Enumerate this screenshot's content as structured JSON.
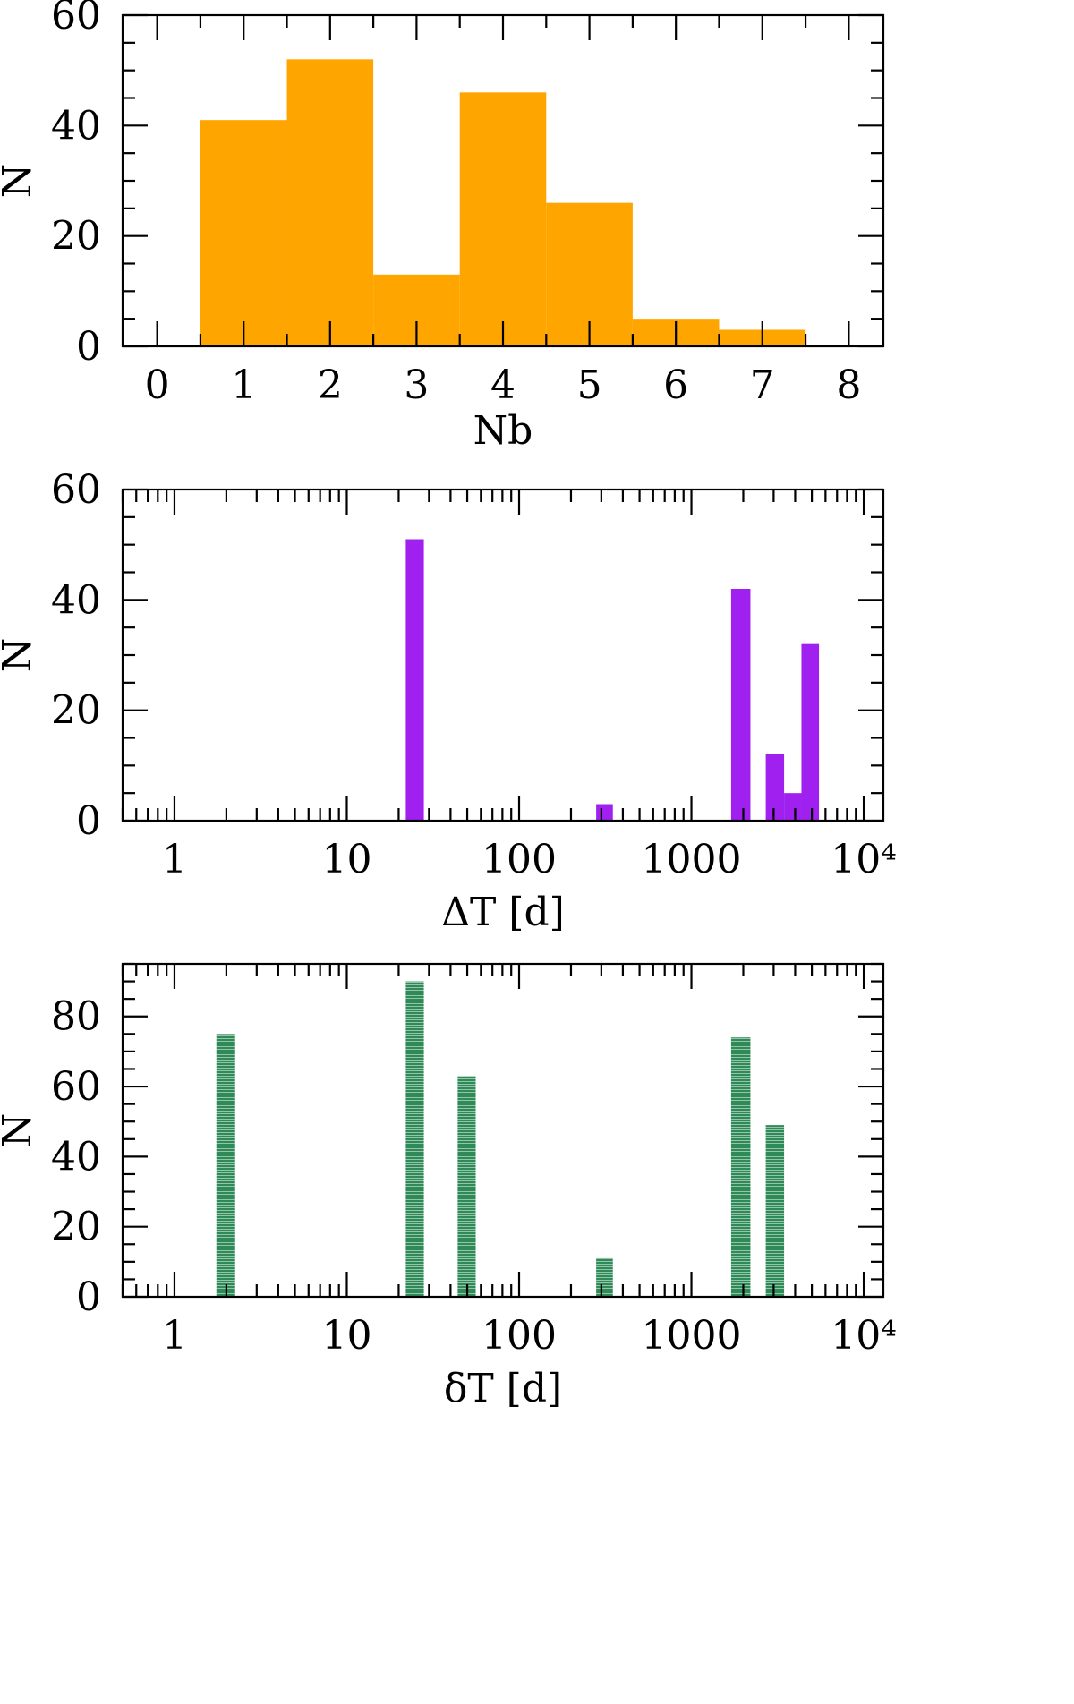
{
  "chart_data": [
    {
      "type": "bar",
      "xlabel": "Nb",
      "ylabel": "N",
      "xlim": [
        -0.4,
        8.4
      ],
      "ylim": [
        0,
        60
      ],
      "xscale": "linear",
      "x_ticks": [
        0,
        1,
        2,
        3,
        4,
        5,
        6,
        7,
        8
      ],
      "x_tick_labels": [
        "0",
        "1",
        "2",
        "3",
        "4",
        "5",
        "6",
        "7",
        "8"
      ],
      "y_ticks": [
        0,
        20,
        40,
        60
      ],
      "y_tick_labels": [
        "0",
        "20",
        "40",
        "60"
      ],
      "color": "#FFA500",
      "bins": [
        {
          "x0": 0.5,
          "x1": 1.5,
          "value": 41
        },
        {
          "x0": 1.5,
          "x1": 2.5,
          "value": 52
        },
        {
          "x0": 2.5,
          "x1": 3.5,
          "value": 13
        },
        {
          "x0": 3.5,
          "x1": 4.5,
          "value": 46
        },
        {
          "x0": 4.5,
          "x1": 5.5,
          "value": 26
        },
        {
          "x0": 5.5,
          "x1": 6.5,
          "value": 5
        },
        {
          "x0": 6.5,
          "x1": 7.5,
          "value": 3
        }
      ]
    },
    {
      "type": "bar",
      "xlabel": "ΔT [d]",
      "ylabel": "N",
      "xlim": [
        0.5,
        13000
      ],
      "ylim": [
        0,
        60
      ],
      "xscale": "log",
      "x_ticks": [
        1,
        10,
        100,
        1000,
        10000
      ],
      "x_tick_labels": [
        "1",
        "10",
        "100",
        "1000",
        "10⁴"
      ],
      "y_ticks": [
        0,
        20,
        40,
        60
      ],
      "y_tick_labels": [
        "0",
        "20",
        "40",
        "60"
      ],
      "color": "#A020F0",
      "bins": [
        {
          "x0": 22,
          "x1": 28,
          "value": 51
        },
        {
          "x0": 280,
          "x1": 350,
          "value": 3
        },
        {
          "x0": 1700,
          "x1": 2200,
          "value": 42
        },
        {
          "x0": 2700,
          "x1": 3450,
          "value": 12
        },
        {
          "x0": 3450,
          "x1": 4350,
          "value": 5
        },
        {
          "x0": 4350,
          "x1": 5500,
          "value": 32
        }
      ]
    },
    {
      "type": "bar",
      "xlabel": "δT [d]",
      "ylabel": "N",
      "xlim": [
        0.5,
        13000
      ],
      "ylim": [
        0,
        95
      ],
      "xscale": "log",
      "x_ticks": [
        1,
        10,
        100,
        1000,
        10000
      ],
      "x_tick_labels": [
        "1",
        "10",
        "100",
        "1000",
        "10⁴"
      ],
      "y_ticks": [
        0,
        20,
        40,
        60,
        80
      ],
      "y_tick_labels": [
        "0",
        "20",
        "40",
        "60",
        "80"
      ],
      "color": "#2E8B57",
      "bins": [
        {
          "x0": 1.75,
          "x1": 2.25,
          "value": 75
        },
        {
          "x0": 22,
          "x1": 28,
          "value": 90
        },
        {
          "x0": 44,
          "x1": 56,
          "value": 63
        },
        {
          "x0": 280,
          "x1": 350,
          "value": 11
        },
        {
          "x0": 1700,
          "x1": 2200,
          "value": 74
        },
        {
          "x0": 2700,
          "x1": 3450,
          "value": 49
        }
      ]
    }
  ]
}
